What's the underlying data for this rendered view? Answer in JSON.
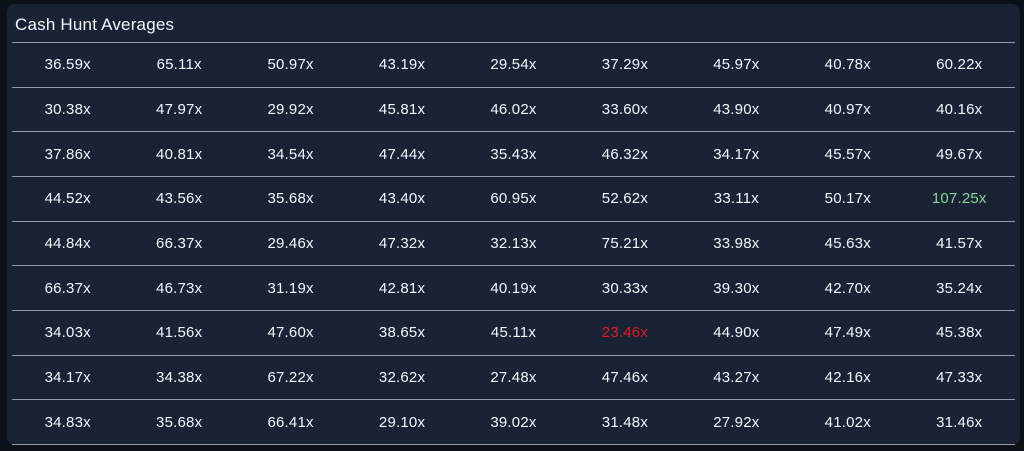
{
  "page": {
    "title": "Cash Hunt Averages"
  },
  "colors": {
    "page_bg": "#0c1017",
    "card_bg": "#1a2336",
    "divider": "#949ca9",
    "text": "#f3f5f9",
    "highlight_green": "#87d493",
    "highlight_red": "#e01a20"
  },
  "table": {
    "columns": 9,
    "value_suffix": "x",
    "rows": [
      [
        "36.59x",
        "65.11x",
        "50.97x",
        "43.19x",
        "29.54x",
        "37.29x",
        "45.97x",
        "40.78x",
        "60.22x"
      ],
      [
        "30.38x",
        "47.97x",
        "29.92x",
        "45.81x",
        "46.02x",
        "33.60x",
        "43.90x",
        "40.97x",
        "40.16x"
      ],
      [
        "37.86x",
        "40.81x",
        "34.54x",
        "47.44x",
        "35.43x",
        "46.32x",
        "34.17x",
        "45.57x",
        "49.67x"
      ],
      [
        "44.52x",
        "43.56x",
        "35.68x",
        "43.40x",
        "60.95x",
        "52.62x",
        "33.11x",
        "50.17x",
        "107.25x"
      ],
      [
        "44.84x",
        "66.37x",
        "29.46x",
        "47.32x",
        "32.13x",
        "75.21x",
        "33.98x",
        "45.63x",
        "41.57x"
      ],
      [
        "66.37x",
        "46.73x",
        "31.19x",
        "42.81x",
        "40.19x",
        "30.33x",
        "39.30x",
        "42.70x",
        "35.24x"
      ],
      [
        "34.03x",
        "41.56x",
        "47.60x",
        "38.65x",
        "45.11x",
        "23.46x",
        "44.90x",
        "47.49x",
        "45.38x"
      ],
      [
        "34.17x",
        "34.38x",
        "67.22x",
        "32.62x",
        "27.48x",
        "47.46x",
        "43.27x",
        "42.16x",
        "47.33x"
      ],
      [
        "34.83x",
        "35.68x",
        "66.41x",
        "29.10x",
        "39.02x",
        "31.48x",
        "27.92x",
        "41.02x",
        "31.46x"
      ]
    ],
    "highlights": [
      {
        "row": 3,
        "col": 8,
        "color": "green"
      },
      {
        "row": 6,
        "col": 5,
        "color": "red"
      }
    ]
  }
}
